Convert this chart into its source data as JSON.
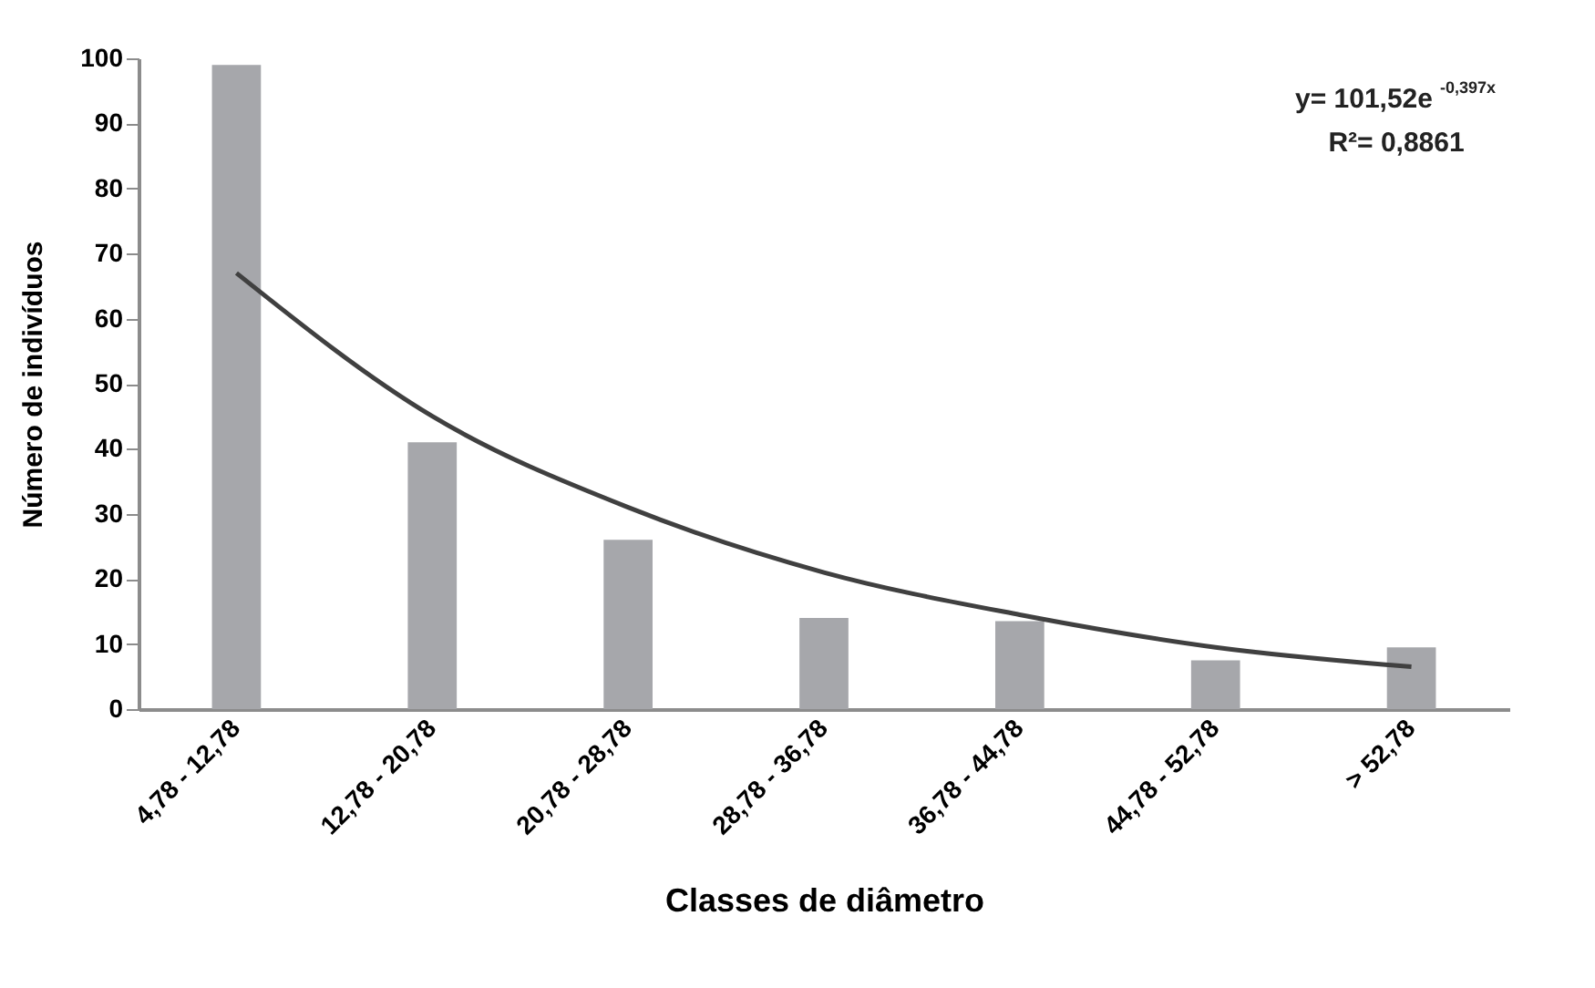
{
  "chart_data": {
    "type": "bar",
    "xlabel": "Classes de diâmetro",
    "ylabel": "Número de indivíduos",
    "categories": [
      "4,78 - 12,78",
      "12,78 - 20,78",
      "20,78 - 28,78",
      "28,78 - 36,78",
      "36,78 - 44,78",
      "44,78 - 52,78",
      "> 52,78"
    ],
    "series": [
      {
        "color": "#a6a7ab",
        "values": [
          99,
          41,
          26,
          14,
          13.5,
          7.5,
          9.5
        ]
      },
      {
        "type": "line",
        "color": "#404040",
        "line_style": "solid",
        "marker": "none",
        "values": [
          67,
          45,
          31,
          21,
          14.5,
          9.5,
          6.5
        ]
      }
    ],
    "ylim": [
      0,
      100
    ],
    "yticks": [
      0,
      10,
      20,
      30,
      40,
      50,
      60,
      70,
      80,
      90,
      100
    ],
    "grid": false,
    "annotations": [
      "y= 101,52e$^{-0,397x}$",
      "R²= 0,8861"
    ]
  }
}
